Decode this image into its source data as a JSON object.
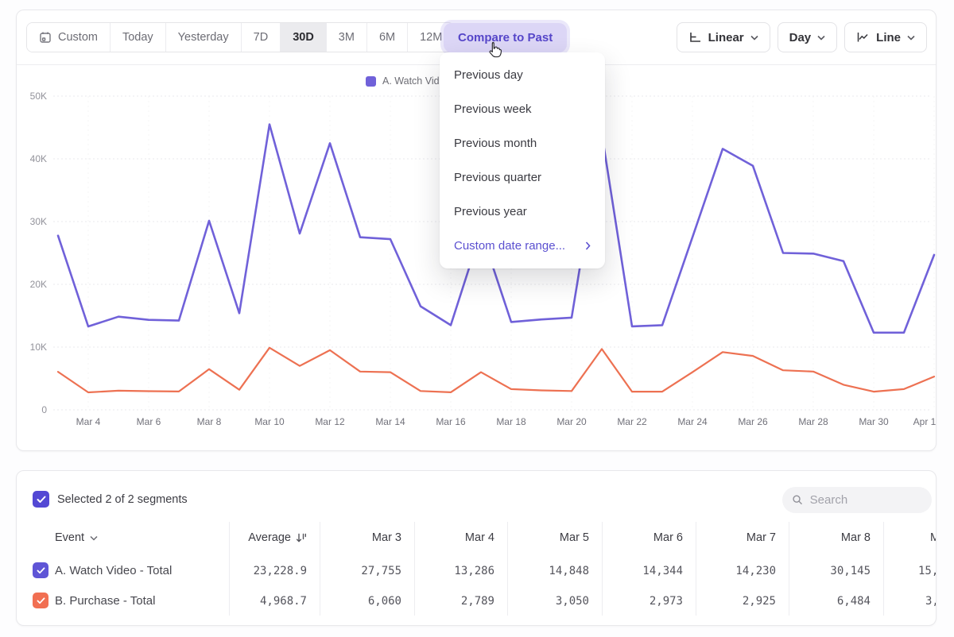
{
  "toolbar": {
    "ranges": [
      {
        "label": "Custom"
      },
      {
        "label": "Today"
      },
      {
        "label": "Yesterday"
      },
      {
        "label": "7D"
      },
      {
        "label": "30D",
        "selected": true
      },
      {
        "label": "3M"
      },
      {
        "label": "6M"
      },
      {
        "label": "12M"
      }
    ],
    "compare_button": "Compare to Past",
    "scale_button": "Linear",
    "granularity_button": "Day",
    "chart_type_button": "Line"
  },
  "compare_menu": {
    "items": [
      "Previous day",
      "Previous week",
      "Previous month",
      "Previous quarter",
      "Previous year"
    ],
    "custom_item": "Custom date range...",
    "accent_color": "#5b50d0"
  },
  "chart_data": {
    "type": "line",
    "x": [
      "Mar 3",
      "Mar 4",
      "Mar 5",
      "Mar 6",
      "Mar 7",
      "Mar 8",
      "Mar 9",
      "Mar 10",
      "Mar 11",
      "Mar 12",
      "Mar 13",
      "Mar 14",
      "Mar 15",
      "Mar 16",
      "Mar 17",
      "Mar 18",
      "Mar 19",
      "Mar 20",
      "Mar 21",
      "Mar 22",
      "Mar 23",
      "Mar 24",
      "Mar 25",
      "Mar 26",
      "Mar 27",
      "Mar 28",
      "Mar 29",
      "Mar 30",
      "Mar 31",
      "Apr 1"
    ],
    "x_tick_labels": [
      "Mar 4",
      "Mar 6",
      "Mar 8",
      "Mar 10",
      "Mar 12",
      "Mar 14",
      "Mar 16",
      "Mar 18",
      "Mar 20",
      "Mar 22",
      "Mar 24",
      "Mar 26",
      "Mar 28",
      "Mar 30",
      "Apr 1"
    ],
    "series": [
      {
        "name": "A. Watch Video - Total",
        "color": "#7061d9",
        "values": [
          27755,
          13286,
          14848,
          14344,
          14230,
          30145,
          15400,
          45500,
          28100,
          42500,
          27500,
          27200,
          16500,
          13500,
          28500,
          14000,
          14400,
          14700,
          44000,
          13300,
          13500,
          27500,
          41600,
          38900,
          25000,
          24900,
          23700,
          12300,
          12300,
          24700
        ]
      },
      {
        "name": "B. Purchase - Total",
        "color": "#ed7152",
        "values": [
          6060,
          2789,
          3050,
          2973,
          2925,
          6484,
          3200,
          9900,
          7000,
          9500,
          6100,
          6000,
          3000,
          2800,
          6000,
          3300,
          3100,
          3000,
          9700,
          2900,
          2900,
          6000,
          9200,
          8600,
          6300,
          6100,
          4000,
          2900,
          3300,
          5300
        ]
      }
    ],
    "ylim": [
      0,
      50000
    ],
    "yticks": [
      {
        "value": 0,
        "label": "0"
      },
      {
        "value": 10000,
        "label": "10K"
      },
      {
        "value": 20000,
        "label": "20K"
      },
      {
        "value": 30000,
        "label": "30K"
      },
      {
        "value": 40000,
        "label": "40K"
      },
      {
        "value": 50000,
        "label": "50K"
      }
    ],
    "legend_position": "top",
    "grid": true
  },
  "segments": {
    "selected_text": "Selected 2 of 2 segments",
    "search_placeholder": "Search"
  },
  "table": {
    "event_header": "Event",
    "average_header": "Average",
    "date_columns": [
      "Mar 3",
      "Mar 4",
      "Mar 5",
      "Mar 6",
      "Mar 7",
      "Mar 8"
    ],
    "truncated_column": {
      "header": "M",
      "row_a": "15,",
      "row_b": "3,"
    },
    "rows": [
      {
        "label": "A. Watch Video - Total",
        "color": "#5f55d6",
        "average": "23,228.9",
        "values": [
          "27,755",
          "13,286",
          "14,848",
          "14,344",
          "14,230",
          "30,145"
        ]
      },
      {
        "label": "B. Purchase - Total",
        "color": "#f16f52",
        "average": "4,968.7",
        "values": [
          "6,060",
          "2,789",
          "3,050",
          "2,973",
          "2,925",
          "6,484"
        ]
      }
    ]
  }
}
